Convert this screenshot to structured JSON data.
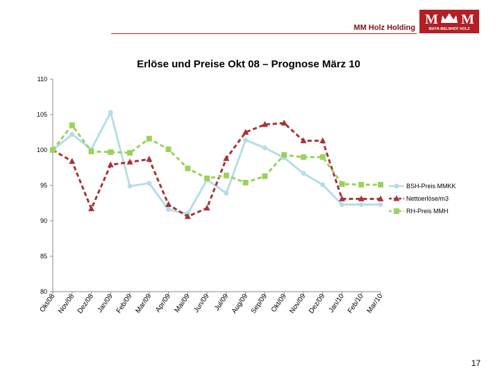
{
  "header": {
    "company": "MM Holz Holding",
    "logo_text": "MAYR-MELNHOF HOLZ",
    "logo_letters": "M M"
  },
  "page_number": "17",
  "colors": {
    "brand": "#b21f24",
    "series_bsh": "#b5dde6",
    "series_netto": "#a83237",
    "series_rh": "#9bd25a"
  },
  "chart_data": {
    "type": "line",
    "title": "Erlöse und Preise Okt 08 – Prognose März 10",
    "xlabel": "",
    "ylabel": "",
    "ylim": [
      80,
      110
    ],
    "yticks": [
      80,
      85,
      90,
      95,
      100,
      105,
      110
    ],
    "grid": false,
    "legend_position": "right",
    "categories": [
      "Okt/08",
      "Nov/08",
      "Dez/08",
      "Jan/09",
      "Feb/09",
      "Mar/09",
      "Apr/09",
      "Mai/09",
      "Jun/09",
      "Jul/09",
      "Aug/09",
      "Sep/09",
      "Okt/09",
      "Nov/09",
      "Dez/09",
      "Jan/10",
      "Feb/10",
      "Mar/10"
    ],
    "series": [
      {
        "name": "BSH-Preis MMKK",
        "marker": "circle",
        "style": "solid",
        "values": [
          100.0,
          102.2,
          100.1,
          105.3,
          94.9,
          95.3,
          91.6,
          91.0,
          95.8,
          93.9,
          101.4,
          100.3,
          98.9,
          96.7,
          95.1,
          92.3,
          92.3,
          92.3
        ]
      },
      {
        "name": "Nettoerlöse/m3",
        "marker": "triangle",
        "style": "dashed",
        "values": [
          100.0,
          98.4,
          91.7,
          97.9,
          98.3,
          98.7,
          92.3,
          90.6,
          91.8,
          98.8,
          102.5,
          103.6,
          103.8,
          101.3,
          101.3,
          93.1,
          93.1,
          93.1
        ]
      },
      {
        "name": "RH-Preis MMH",
        "marker": "square",
        "style": "dashed",
        "values": [
          100.0,
          103.5,
          99.8,
          99.7,
          99.6,
          101.6,
          100.1,
          97.4,
          96.0,
          96.4,
          95.4,
          96.3,
          99.3,
          99.0,
          99.0,
          95.2,
          95.1,
          95.1
        ]
      }
    ]
  }
}
